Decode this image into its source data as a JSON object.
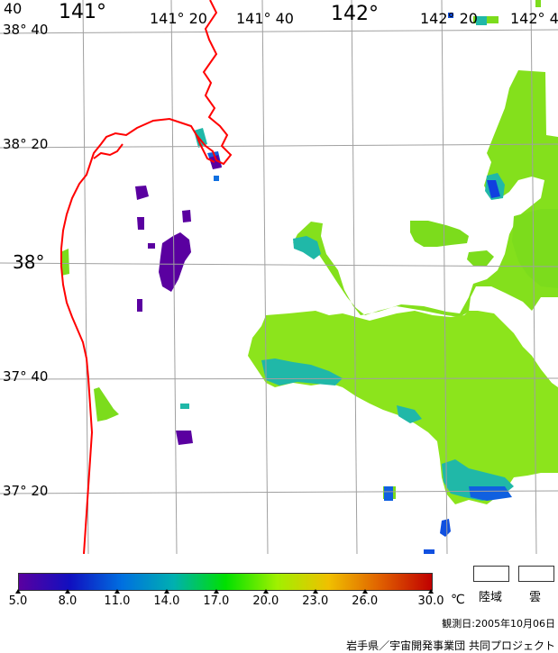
{
  "map": {
    "lon_labels": [
      {
        "text": "40",
        "size": "small"
      },
      {
        "text": "141°",
        "size": "big"
      },
      {
        "text": "141° 20",
        "size": "small"
      },
      {
        "text": "141° 40",
        "size": "small"
      },
      {
        "text": "142°",
        "size": "big"
      },
      {
        "text": "142° 20",
        "size": "small"
      },
      {
        "text": "142° 4",
        "size": "small"
      }
    ],
    "lat_labels": [
      {
        "text": "38° 40",
        "size": "small"
      },
      {
        "text": "38° 20",
        "size": "small"
      },
      {
        "text": "38°",
        "size": "big"
      },
      {
        "text": "37° 40",
        "size": "small"
      },
      {
        "text": "37° 20",
        "size": "small"
      }
    ],
    "coastline_color": "#ff0000",
    "grid_color": "#a0a0a0"
  },
  "colorbar": {
    "unit": "℃",
    "ticks": [
      "5.0",
      "8.0",
      "11.0",
      "14.0",
      "17.0",
      "20.0",
      "23.0",
      "26.0",
      "30.0"
    ],
    "colors": [
      "#5a00a0",
      "#1010c0",
      "#0070e0",
      "#00b0b0",
      "#00e000",
      "#a0f000",
      "#f0c000",
      "#e06000",
      "#c00000"
    ]
  },
  "legend": {
    "land_label": "陸域",
    "cloud_label": "雲"
  },
  "footer": {
    "obs_date": "観測日:2005年10月06日",
    "credit": "岩手県／宇宙開発事業団 共同プロジェクト"
  }
}
